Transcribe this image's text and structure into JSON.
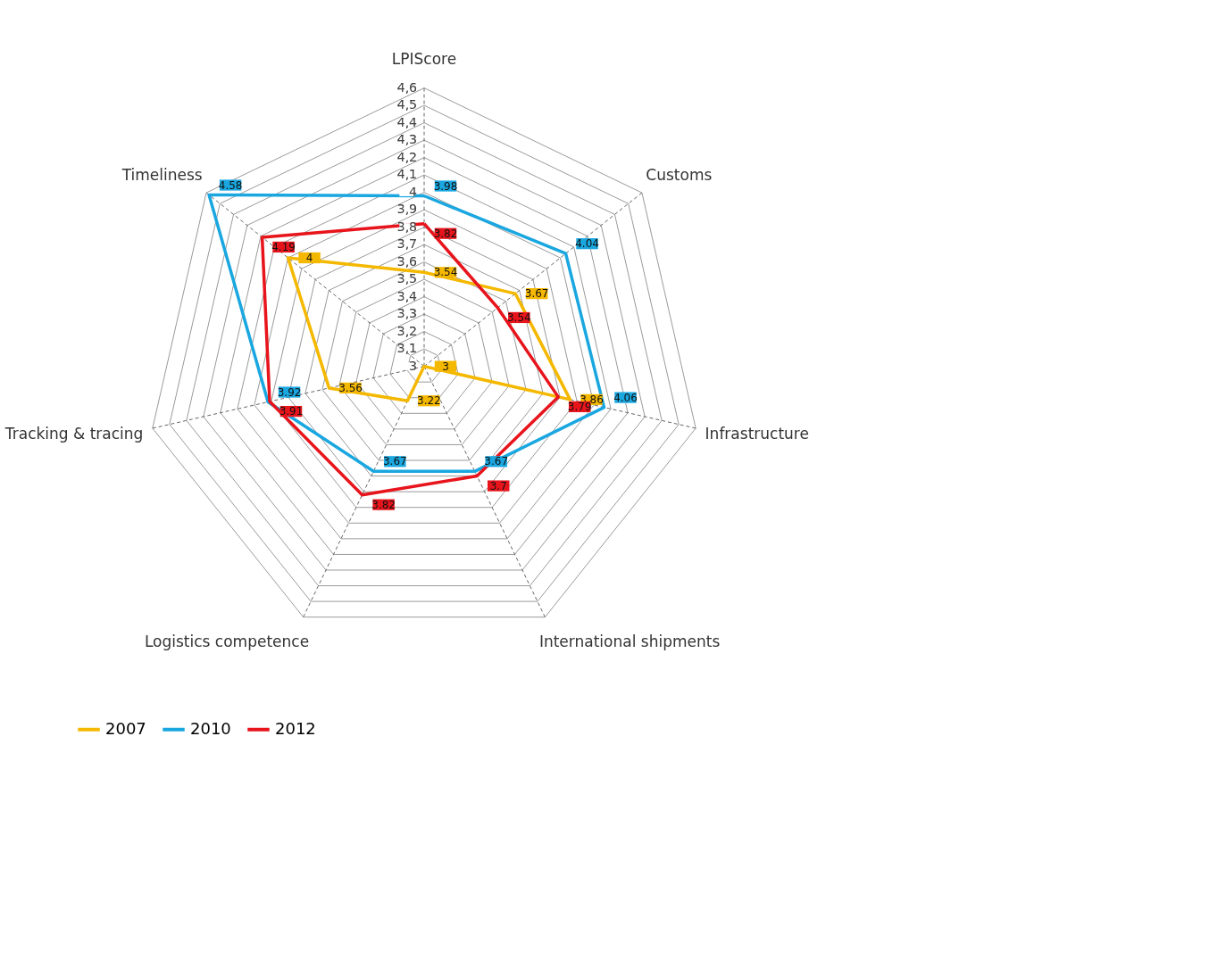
{
  "chart_data": {
    "type": "radar",
    "categories": [
      "LPIScore",
      "Customs",
      "Infrastructure",
      "International shipments",
      "Logistics competence",
      "Tracking & tracing",
      "Timeliness"
    ],
    "series": [
      {
        "name": "2007",
        "color": "#f5b800",
        "values": [
          3.54,
          3.67,
          3.86,
          3,
          3.22,
          3.56,
          4
        ]
      },
      {
        "name": "2010",
        "color": "#1aa7e0",
        "values": [
          3.98,
          4.04,
          4.06,
          3.67,
          3.67,
          3.92,
          4.58
        ]
      },
      {
        "name": "2012",
        "color": "#e8141c",
        "values": [
          3.82,
          3.54,
          3.79,
          3.7,
          3.82,
          3.91,
          4.19
        ]
      }
    ],
    "ylim": [
      3,
      4.6
    ],
    "yticks": [
      3,
      {
        "value": 3.1,
        "label": "3,1"
      },
      {
        "value": 3.2,
        "label": "3,2"
      },
      {
        "value": 3.3,
        "label": "3,3"
      },
      {
        "value": 3.4,
        "label": "3,4"
      },
      {
        "value": 3.5,
        "label": "3,5"
      },
      {
        "value": 3.6,
        "label": "3,6"
      },
      {
        "value": 3.7,
        "label": "3,7"
      },
      {
        "value": 3.8,
        "label": "3,8"
      },
      {
        "value": 3.9,
        "label": "3,9"
      },
      4,
      {
        "value": 4.1,
        "label": "4,1"
      },
      {
        "value": 4.2,
        "label": "4,2"
      },
      {
        "value": 4.3,
        "label": "4,3"
      },
      {
        "value": 4.4,
        "label": "4,4"
      },
      {
        "value": 4.5,
        "label": "4,5"
      },
      {
        "value": 4.6,
        "label": "4,6"
      }
    ],
    "grid": true,
    "data_labels": true,
    "legend": "bottom"
  }
}
